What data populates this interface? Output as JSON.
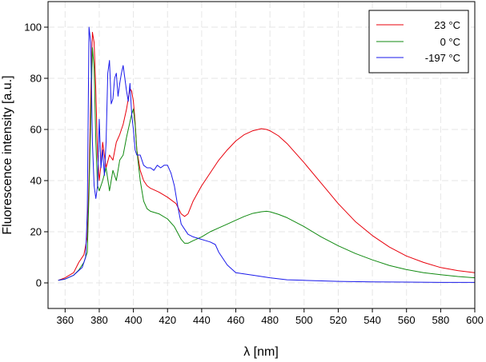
{
  "chart_data": {
    "type": "line",
    "title": "",
    "xlabel": "λ [nm]",
    "ylabel": "Fluorescence intensity [a.u.]",
    "xlim": [
      350,
      600
    ],
    "ylim": [
      -10,
      110
    ],
    "xticks": [
      360,
      380,
      400,
      420,
      440,
      460,
      480,
      500,
      520,
      540,
      560,
      580,
      600
    ],
    "yticks": [
      0,
      20,
      40,
      60,
      80,
      100
    ],
    "grid": true,
    "legend_position": "top-right",
    "series": [
      {
        "name": "23 °C",
        "color": "#e8000b",
        "x": [
          356,
          360,
          365,
          368,
          371,
          373,
          374,
          375,
          376,
          377,
          378,
          379,
          380,
          381,
          382,
          383,
          384,
          386,
          388,
          390,
          392,
          394,
          396,
          397,
          398,
          399,
          400,
          401,
          402,
          404,
          406,
          408,
          410,
          415,
          420,
          425,
          428,
          430,
          432,
          435,
          440,
          445,
          450,
          455,
          460,
          465,
          470,
          475,
          478,
          480,
          485,
          490,
          500,
          510,
          520,
          530,
          540,
          550,
          560,
          570,
          580,
          590,
          600
        ],
        "y": [
          1,
          2,
          4,
          8,
          11,
          18,
          40,
          72,
          98,
          94,
          75,
          50,
          40,
          46,
          55,
          50,
          45,
          50,
          48,
          55,
          58,
          62,
          68,
          72,
          76,
          75,
          71,
          63,
          52,
          44,
          40,
          38,
          37,
          35.5,
          33.5,
          31,
          27,
          26,
          27,
          32,
          38,
          43,
          48,
          52,
          55.5,
          58,
          59.5,
          60.3,
          60,
          59.5,
          57.5,
          54.5,
          47,
          39,
          31,
          24,
          18.5,
          14,
          10.5,
          8,
          6,
          4.8,
          4
        ]
      },
      {
        "name": "0 °C",
        "color": "#118a11",
        "x": [
          356,
          360,
          365,
          368,
          371,
          373,
          374,
          375,
          376,
          377,
          378,
          379,
          380,
          382,
          384,
          386,
          388,
          390,
          392,
          394,
          396,
          398,
          399,
          400,
          401,
          402,
          404,
          406,
          408,
          410,
          415,
          420,
          424,
          428,
          430,
          432,
          435,
          440,
          445,
          450,
          455,
          460,
          465,
          470,
          475,
          478,
          480,
          485,
          490,
          500,
          510,
          520,
          530,
          540,
          550,
          560,
          570,
          580,
          590,
          600
        ],
        "y": [
          1,
          1.5,
          3,
          5,
          8,
          12,
          35,
          62,
          92,
          84,
          55,
          38,
          36,
          40,
          45,
          36,
          44,
          40,
          48,
          50,
          57,
          63,
          66,
          68,
          62,
          52,
          40,
          32,
          29,
          28,
          27,
          25,
          22,
          17,
          15.5,
          15.5,
          16.5,
          18,
          20,
          21.5,
          23,
          24.5,
          26,
          27.2,
          27.8,
          28,
          27.8,
          26.8,
          25.5,
          22,
          18,
          14.5,
          11.5,
          9,
          6.8,
          5.2,
          4,
          3.2,
          2.5,
          2
        ]
      },
      {
        "name": "-197 °C",
        "color": "#1a1aeb",
        "x": [
          356,
          360,
          365,
          370,
          372,
          373,
          374,
          375,
          376,
          377,
          378,
          379,
          380,
          381,
          382,
          383,
          384,
          385,
          386,
          387,
          388,
          389,
          390,
          391,
          392,
          393,
          394,
          395,
          396,
          397,
          398,
          399,
          400,
          401,
          402,
          404,
          406,
          408,
          410,
          412,
          414,
          416,
          418,
          420,
          422,
          424,
          426,
          428,
          430,
          432,
          435,
          440,
          445,
          448,
          450,
          455,
          460,
          470,
          480,
          490,
          500,
          520,
          540,
          560,
          580,
          600
        ],
        "y": [
          1,
          1.5,
          3,
          6,
          10,
          28,
          100,
          94,
          55,
          38,
          33,
          38,
          64,
          45,
          52,
          42,
          55,
          82,
          87,
          70,
          72,
          80,
          82,
          73,
          78,
          82,
          85,
          80,
          75,
          71,
          78,
          66,
          60,
          52,
          50,
          50,
          46,
          45,
          45,
          44,
          46,
          45,
          46,
          46,
          43,
          38,
          30,
          23,
          21,
          19,
          18,
          17,
          16,
          15,
          12,
          7,
          4,
          3,
          2,
          1.2,
          1,
          0.6,
          0.4,
          0.3,
          0.2,
          0.2
        ]
      }
    ]
  }
}
